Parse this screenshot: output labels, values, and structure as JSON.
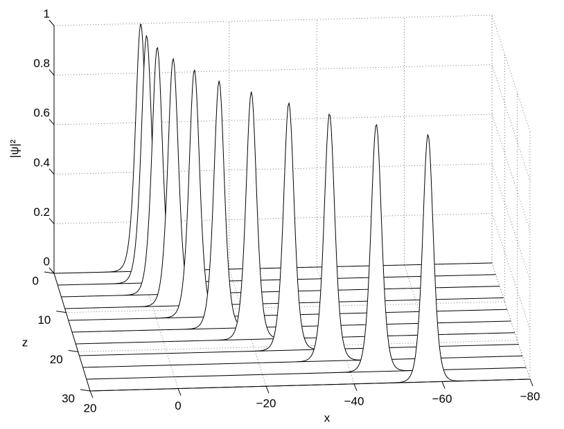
{
  "chart_data": {
    "type": "waterfall",
    "x_label": "x",
    "y_label": "|ψ|²",
    "z_label": "z",
    "xlim": [
      20,
      -80
    ],
    "xticks": [
      20,
      0,
      {
        "value": -20,
        "label": "−20"
      },
      {
        "value": -40,
        "label": "−40"
      },
      {
        "value": -60,
        "label": "−60"
      },
      {
        "value": -80,
        "label": "−80"
      }
    ],
    "zlim": [
      0,
      30
    ],
    "zticks": [
      0,
      10,
      20,
      30
    ],
    "ylim": [
      0,
      1
    ],
    "yticks": [
      0,
      0.2,
      0.4,
      0.6,
      0.8,
      1
    ],
    "grid": true,
    "color": "#000000",
    "peak_width": 1.6,
    "slices": [
      {
        "z": 0,
        "center": 0.2,
        "peak": 1
      },
      {
        "z": 3,
        "center": -0.3,
        "peak": 1
      },
      {
        "z": 6,
        "center": -1.9,
        "peak": 1
      },
      {
        "z": 9,
        "center": -4.7,
        "peak": 1
      },
      {
        "z": 12,
        "center": -8.7,
        "peak": 1
      },
      {
        "z": 15,
        "center": -13.5,
        "peak": 1
      },
      {
        "z": 18,
        "center": -20,
        "peak": 1
      },
      {
        "z": 21,
        "center": -27.7,
        "peak": 1
      },
      {
        "z": 24,
        "center": -36.1,
        "peak": 1
      },
      {
        "z": 27,
        "center": -45.9,
        "peak": 1
      },
      {
        "z": 30,
        "center": -56.8,
        "peak": 1
      }
    ]
  }
}
